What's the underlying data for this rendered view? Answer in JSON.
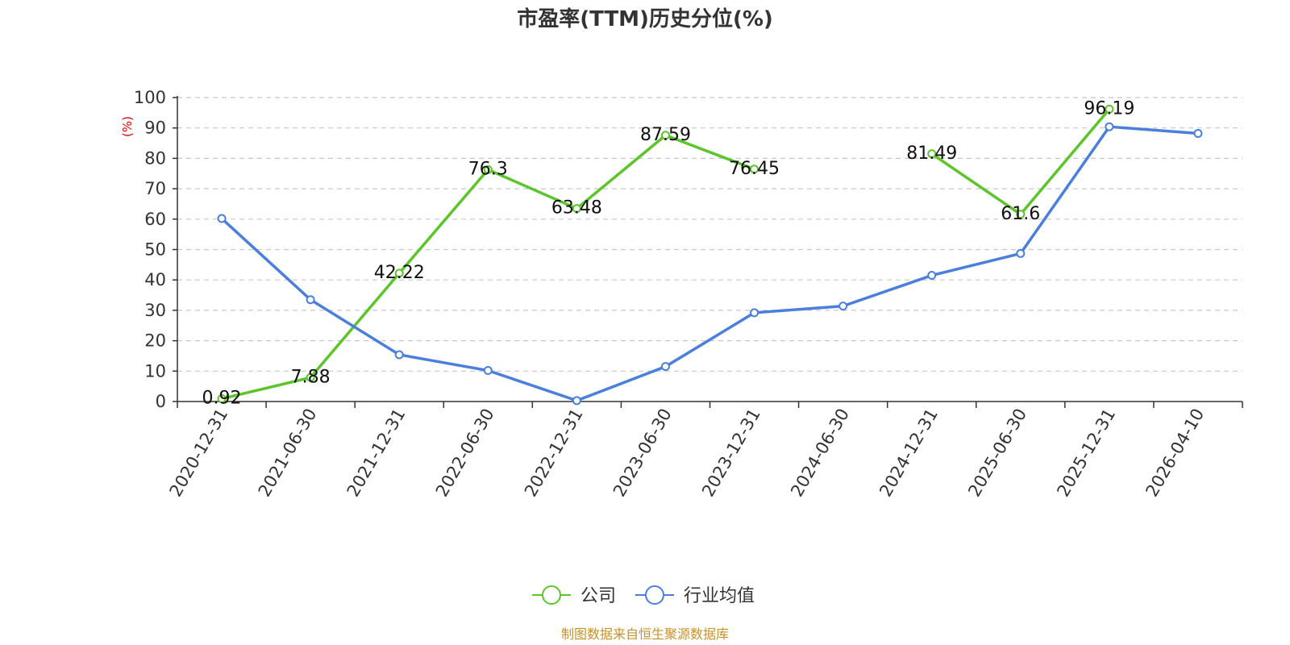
{
  "chart_data": {
    "type": "line",
    "title": "市盈率(TTM)历史分位(%)",
    "ylabel": "(%)",
    "ylim": [
      0,
      100
    ],
    "yticks": [
      0,
      10,
      20,
      30,
      40,
      50,
      60,
      70,
      80,
      90,
      100
    ],
    "grid": true,
    "legend_position": "bottom",
    "categories": [
      "2020-12-31",
      "2021-06-30",
      "2021-12-31",
      "2022-06-30",
      "2022-12-31",
      "2023-06-30",
      "2023-12-31",
      "2024-06-30",
      "2024-12-31",
      "2025-06-30",
      "2025-12-31",
      "2026-04-10"
    ],
    "series": [
      {
        "name": "公司",
        "color": "#5cc52a",
        "values": [
          0.92,
          7.88,
          42.22,
          76.3,
          63.48,
          87.59,
          76.45,
          null,
          81.49,
          61.6,
          96.19,
          null
        ],
        "labels": [
          "0.92",
          "7.88",
          "42.22",
          "76.3",
          "63.48",
          "87.59",
          "76.45",
          null,
          "81.49",
          "61.6",
          "96.19",
          null
        ]
      },
      {
        "name": "行业均值",
        "color": "#4a7fdd",
        "values": [
          60.2,
          33.5,
          15.4,
          10.2,
          0.3,
          11.5,
          29.2,
          31.4,
          41.5,
          48.7,
          90.4,
          88.2
        ]
      }
    ],
    "source": "制图数据来自恒生聚源数据库"
  }
}
